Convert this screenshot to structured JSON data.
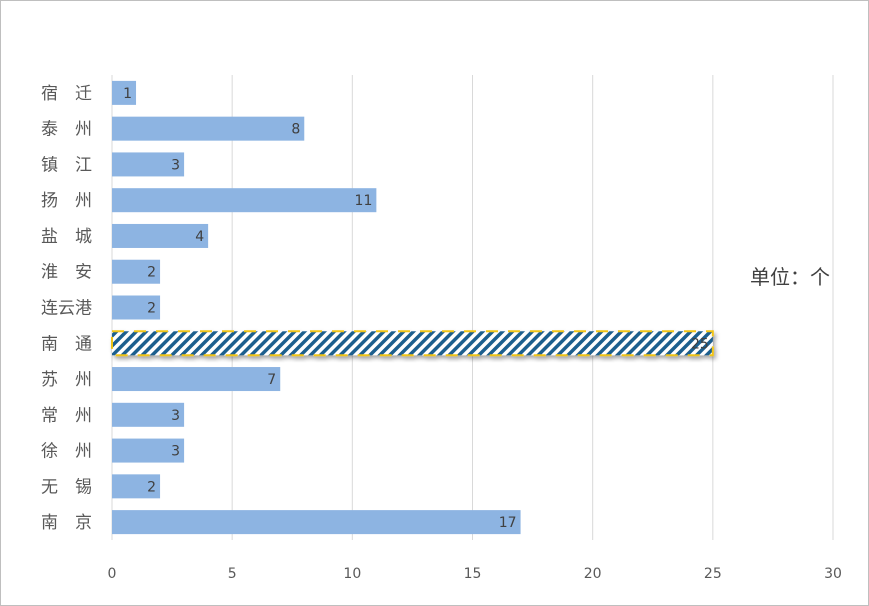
{
  "chart_data": {
    "type": "bar",
    "orientation": "horizontal",
    "categories": [
      "宿　迁",
      "泰　州",
      "镇　江",
      "扬　州",
      "盐　城",
      "淮　安",
      "连云港",
      "南　通",
      "苏　州",
      "常　州",
      "徐　州",
      "无　锡",
      "南　京"
    ],
    "values": [
      1,
      8,
      3,
      11,
      4,
      2,
      2,
      25,
      7,
      3,
      3,
      2,
      17
    ],
    "highlight_category": "南　通",
    "xlim": [
      0,
      30
    ],
    "xticks": [
      0,
      5,
      10,
      15,
      20,
      25,
      30
    ],
    "grid": "vertical",
    "unit_label": "单位：个",
    "colors": {
      "bar": "#8db4e2",
      "highlight_stripe": "#1f5e8e",
      "highlight_border": "#f0c419",
      "grid": "#d9d9d9"
    }
  }
}
